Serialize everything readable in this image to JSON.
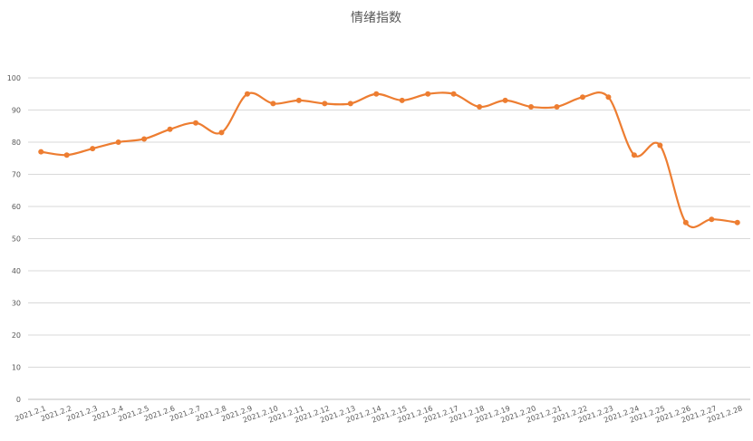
{
  "chart_data": {
    "type": "line",
    "title": "情绪指数",
    "categories": [
      "2021.2.1",
      "2021.2.2",
      "2021.2.3",
      "2021.2.4",
      "2021.2.5",
      "2021.2.6",
      "2021.2.7",
      "2021.2.8",
      "2021.2.9",
      "2021.2.10",
      "2021.2.11",
      "2021.2.12",
      "2021.2.13",
      "2021.2.14",
      "2021.2.15",
      "2021.2.16",
      "2021.2.17",
      "2021.2.18",
      "2021.2.19",
      "2021.2.20",
      "2021.2.21",
      "2021.2.22",
      "2021.2.23",
      "2021.2.24",
      "2021.2.25",
      "2021.2.26",
      "2021.2.27",
      "2021.2.28"
    ],
    "values": [
      77,
      76,
      78,
      80,
      81,
      84,
      86,
      83,
      95,
      92,
      93,
      92,
      92,
      95,
      93,
      95,
      95,
      91,
      93,
      91,
      91,
      94,
      94,
      76,
      79,
      55,
      56,
      55
    ],
    "color": "#ed7d31",
    "smooth": true,
    "ylim": [
      0,
      100
    ],
    "yticks": [
      0,
      10,
      20,
      30,
      40,
      50,
      60,
      70,
      80,
      90,
      100
    ],
    "grid": true
  }
}
